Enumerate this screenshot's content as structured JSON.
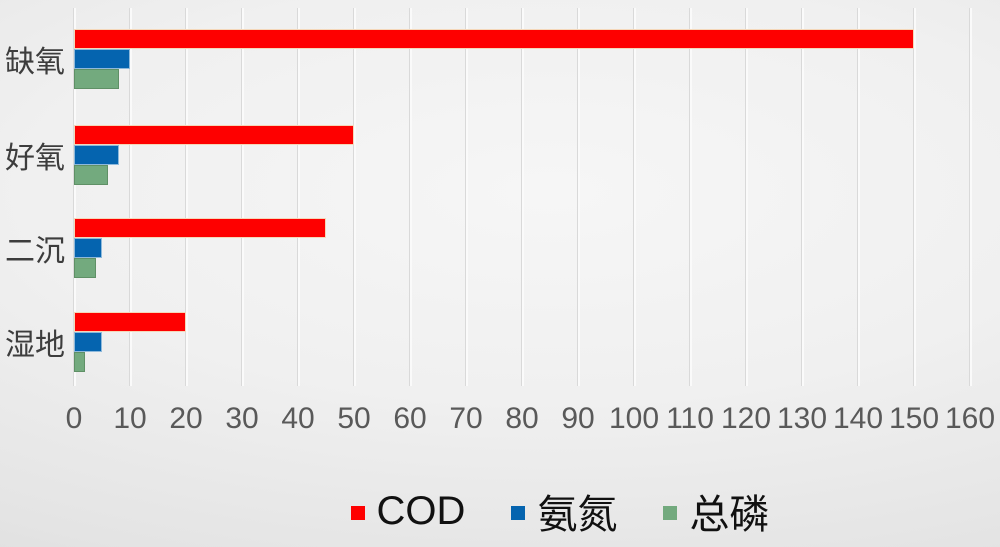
{
  "chart_data": {
    "type": "bar",
    "orientation": "horizontal",
    "title": "",
    "categories": [
      "缺氧",
      "好氧",
      "二沉",
      "湿地"
    ],
    "series": [
      {
        "name": "COD",
        "color": "#fe0000",
        "values": [
          150,
          50,
          45,
          20
        ]
      },
      {
        "name": "氨氮",
        "color": "#0564af",
        "values": [
          10,
          8,
          5,
          5
        ]
      },
      {
        "name": "总磷",
        "color": "#73aa7e",
        "values": [
          8,
          6,
          4,
          2
        ]
      }
    ],
    "x_axis": {
      "min": 0,
      "max": 160,
      "step": 10,
      "tick_labels": [
        "0",
        "10",
        "20",
        "30",
        "40",
        "50",
        "60",
        "70",
        "80",
        "90",
        "100",
        "110",
        "120",
        "130",
        "140",
        "150",
        "160"
      ]
    },
    "grid": true,
    "legend_position": "bottom"
  },
  "colors": {
    "background_light": "#f6f6f6",
    "background_dark": "#d7d7d7",
    "gridline": "#d9d9d9",
    "category_text": "#3d3d3d",
    "axis_text": "#595959",
    "legend_text": "#111111",
    "series_cod": "#fe0000",
    "series_andan": "#0564af",
    "series_zonglin": "#73aa7e"
  }
}
